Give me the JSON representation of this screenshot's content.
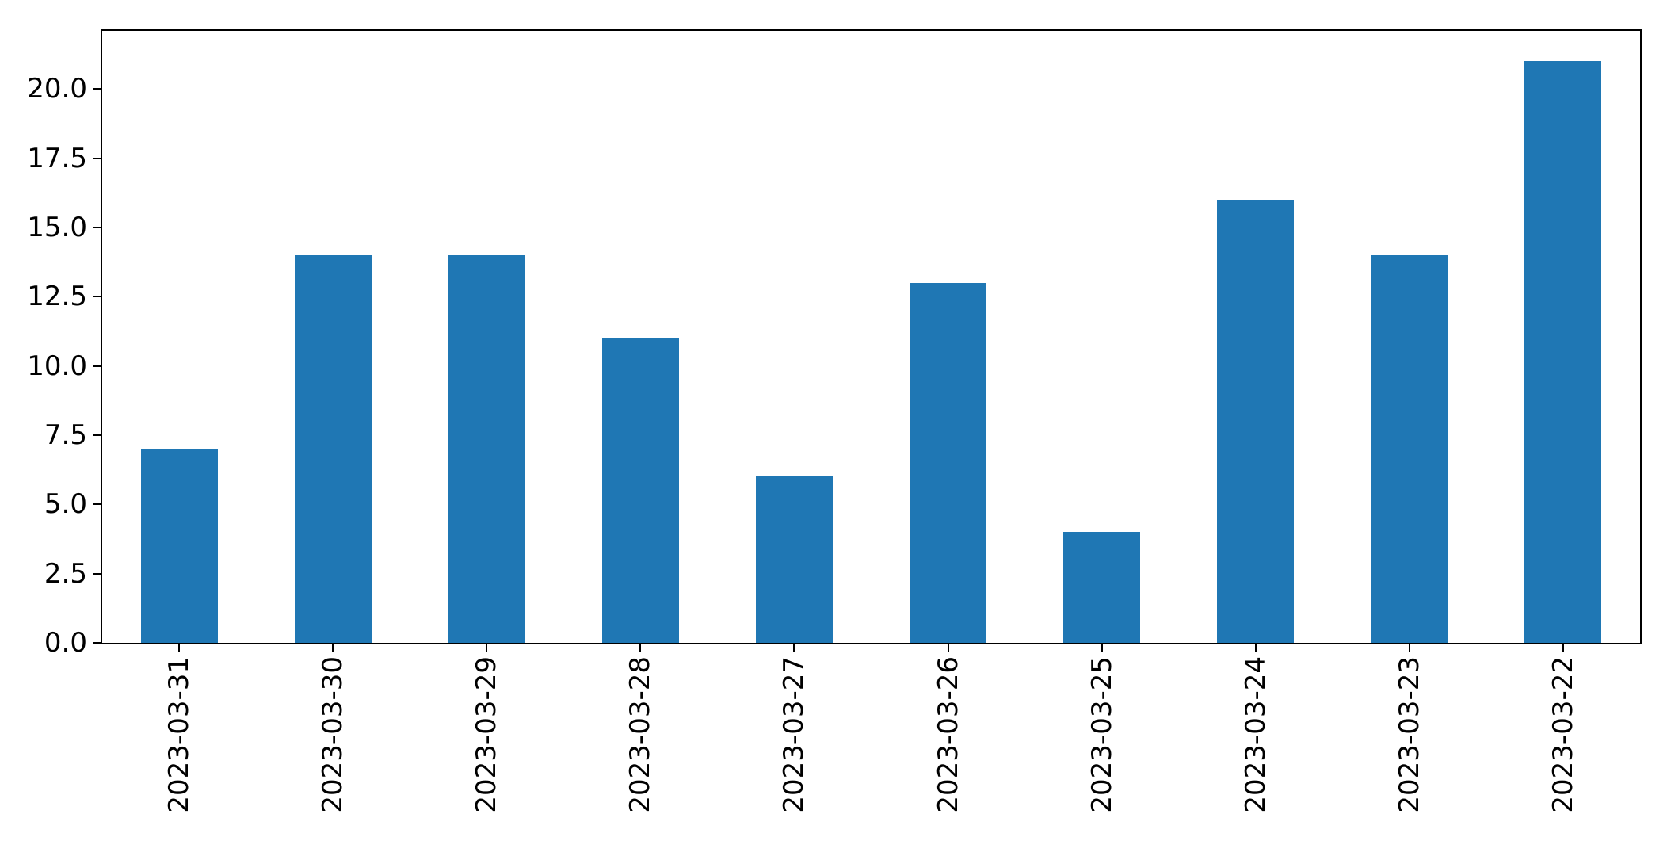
{
  "chart_data": {
    "type": "bar",
    "title": "",
    "xlabel": "",
    "ylabel": "",
    "categories": [
      "2023-03-31",
      "2023-03-30",
      "2023-03-29",
      "2023-03-28",
      "2023-03-27",
      "2023-03-26",
      "2023-03-25",
      "2023-03-24",
      "2023-03-23",
      "2023-03-22"
    ],
    "values": [
      7,
      14,
      14,
      11,
      6,
      13,
      4,
      16,
      14,
      21
    ],
    "ylim": [
      0,
      22.1
    ],
    "yticks": [
      0,
      2.5,
      5,
      7.5,
      10,
      12.5,
      15,
      17.5,
      20
    ],
    "ytick_labels": [
      "0.0",
      "2.5",
      "5.0",
      "7.5",
      "10.0",
      "12.5",
      "15.0",
      "17.5",
      "20.0"
    ],
    "bar_color": "#1f77b4",
    "grid": false,
    "legend": null,
    "x_tick_rotation_deg": 90
  }
}
